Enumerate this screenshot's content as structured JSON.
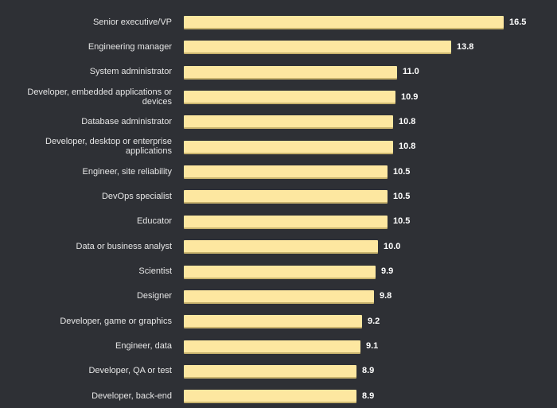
{
  "chart_data": {
    "type": "bar",
    "orientation": "horizontal",
    "title": "",
    "xlabel": "",
    "ylabel": "",
    "xlim": [
      0,
      16.5
    ],
    "categories": [
      "Senior executive/VP",
      "Engineering manager",
      "System administrator",
      "Developer, embedded applications or devices",
      "Database administrator",
      "Developer, desktop or enterprise applications",
      "Engineer, site reliability",
      "DevOps specialist",
      "Educator",
      "Data or business analyst",
      "Scientist",
      "Designer",
      "Developer, game or graphics",
      "Engineer, data",
      "Developer, QA or test",
      "Developer, back-end"
    ],
    "values": [
      16.5,
      13.8,
      11.0,
      10.9,
      10.8,
      10.8,
      10.5,
      10.5,
      10.5,
      10.0,
      9.9,
      9.8,
      9.2,
      9.1,
      8.9,
      8.9
    ],
    "value_labels": [
      "16.5",
      "13.8",
      "11.0",
      "10.9",
      "10.8",
      "10.8",
      "10.5",
      "10.5",
      "10.5",
      "10.0",
      "9.9",
      "9.8",
      "9.2",
      "9.1",
      "8.9",
      "8.9"
    ],
    "bar_color": "#fde7a0",
    "background_color": "#2e3035"
  }
}
